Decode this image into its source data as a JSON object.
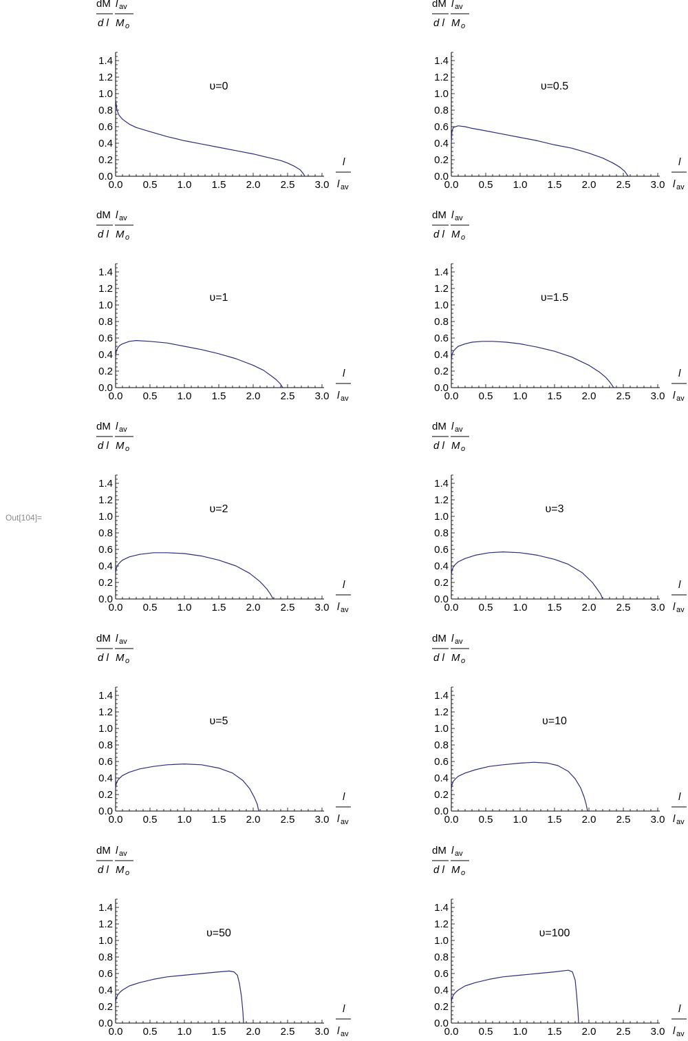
{
  "cell": {
    "out_label": "Out[104]="
  },
  "axis_labels": {
    "y_num_1": "dM",
    "y_den_1": "d l",
    "y_num_2": "l",
    "y_num_2_sub": "av",
    "y_den_2": "M",
    "y_den_2_sub": "o",
    "x_num": "l",
    "x_den": "l",
    "x_den_sub": "av"
  },
  "colors": {
    "curve": "#2b2b80",
    "axis": "#000000",
    "out_label": "#8a8a8a"
  },
  "chart_data": [
    {
      "type": "line",
      "title": "υ=0",
      "xlim": [
        0,
        3
      ],
      "ylim": [
        0,
        1.5
      ],
      "xticks": [
        "0.0",
        "0.5",
        "1.0",
        "1.5",
        "2.0",
        "2.5",
        "3.0"
      ],
      "yticks": [
        "0.0",
        "0.2",
        "0.4",
        "0.6",
        "0.8",
        "1.0",
        "1.2",
        "1.4"
      ],
      "series": [
        {
          "x": [
            0,
            0.02,
            0.05,
            0.1,
            0.2,
            0.3,
            0.5,
            0.75,
            1.0,
            1.25,
            1.5,
            1.75,
            2.0,
            2.25,
            2.4,
            2.5,
            2.6,
            2.68,
            2.73,
            2.75
          ],
          "y": [
            0.93,
            0.8,
            0.74,
            0.69,
            0.63,
            0.59,
            0.54,
            0.48,
            0.43,
            0.39,
            0.35,
            0.31,
            0.27,
            0.22,
            0.19,
            0.16,
            0.12,
            0.08,
            0.03,
            0
          ]
        }
      ]
    },
    {
      "type": "line",
      "title": "υ=0.5",
      "xlim": [
        0,
        3
      ],
      "ylim": [
        0,
        1.5
      ],
      "xticks": [
        "0.0",
        "0.5",
        "1.0",
        "1.5",
        "2.0",
        "2.5",
        "3.0"
      ],
      "yticks": [
        "0.0",
        "0.2",
        "0.4",
        "0.6",
        "0.8",
        "1.0",
        "1.2",
        "1.4"
      ],
      "series": [
        {
          "x": [
            0,
            0.01,
            0.03,
            0.06,
            0.1,
            0.2,
            0.3,
            0.5,
            0.75,
            1.0,
            1.25,
            1.5,
            1.75,
            2.0,
            2.2,
            2.35,
            2.45,
            2.52,
            2.57
          ],
          "y": [
            0.4,
            0.55,
            0.59,
            0.6,
            0.61,
            0.6,
            0.58,
            0.55,
            0.51,
            0.47,
            0.43,
            0.38,
            0.34,
            0.28,
            0.22,
            0.16,
            0.11,
            0.06,
            0
          ]
        }
      ]
    },
    {
      "type": "line",
      "title": "υ=1",
      "xlim": [
        0,
        3
      ],
      "ylim": [
        0,
        1.5
      ],
      "xticks": [
        "0.0",
        "0.5",
        "1.0",
        "1.5",
        "2.0",
        "2.5",
        "3.0"
      ],
      "yticks": [
        "0.0",
        "0.2",
        "0.4",
        "0.6",
        "0.8",
        "1.0",
        "1.2",
        "1.4"
      ],
      "series": [
        {
          "x": [
            0,
            0.01,
            0.03,
            0.06,
            0.1,
            0.2,
            0.3,
            0.5,
            0.75,
            1.0,
            1.25,
            1.5,
            1.75,
            2.0,
            2.15,
            2.25,
            2.33,
            2.39,
            2.43
          ],
          "y": [
            0.36,
            0.44,
            0.48,
            0.51,
            0.53,
            0.56,
            0.57,
            0.56,
            0.54,
            0.5,
            0.46,
            0.41,
            0.35,
            0.27,
            0.21,
            0.15,
            0.1,
            0.05,
            0
          ]
        }
      ]
    },
    {
      "type": "line",
      "title": "υ=1.5",
      "xlim": [
        0,
        3
      ],
      "ylim": [
        0,
        1.5
      ],
      "xticks": [
        "0.0",
        "0.5",
        "1.0",
        "1.5",
        "2.0",
        "2.5",
        "3.0"
      ],
      "yticks": [
        "0.0",
        "0.2",
        "0.4",
        "0.6",
        "0.8",
        "1.0",
        "1.2",
        "1.4"
      ],
      "series": [
        {
          "x": [
            0,
            0.01,
            0.03,
            0.06,
            0.1,
            0.2,
            0.3,
            0.45,
            0.6,
            0.8,
            1.0,
            1.25,
            1.5,
            1.75,
            2.0,
            2.15,
            2.25,
            2.31,
            2.36
          ],
          "y": [
            0.33,
            0.4,
            0.44,
            0.47,
            0.5,
            0.53,
            0.55,
            0.56,
            0.56,
            0.55,
            0.53,
            0.49,
            0.44,
            0.37,
            0.27,
            0.19,
            0.12,
            0.06,
            0
          ]
        }
      ]
    },
    {
      "type": "line",
      "title": "υ=2",
      "xlim": [
        0,
        3
      ],
      "ylim": [
        0,
        1.5
      ],
      "xticks": [
        "0.0",
        "0.5",
        "1.0",
        "1.5",
        "2.0",
        "2.5",
        "3.0"
      ],
      "yticks": [
        "0.0",
        "0.2",
        "0.4",
        "0.6",
        "0.8",
        "1.0",
        "1.2",
        "1.4"
      ],
      "series": [
        {
          "x": [
            0,
            0.01,
            0.03,
            0.06,
            0.1,
            0.2,
            0.35,
            0.55,
            0.75,
            1.0,
            1.25,
            1.5,
            1.75,
            1.95,
            2.1,
            2.2,
            2.25,
            2.29
          ],
          "y": [
            0.31,
            0.37,
            0.41,
            0.44,
            0.47,
            0.51,
            0.54,
            0.56,
            0.56,
            0.55,
            0.52,
            0.47,
            0.4,
            0.31,
            0.21,
            0.12,
            0.06,
            0
          ]
        }
      ]
    },
    {
      "type": "line",
      "title": "υ=3",
      "xlim": [
        0,
        3
      ],
      "ylim": [
        0,
        1.5
      ],
      "xticks": [
        "0.0",
        "0.5",
        "1.0",
        "1.5",
        "2.0",
        "2.5",
        "3.0"
      ],
      "yticks": [
        "0.0",
        "0.2",
        "0.4",
        "0.6",
        "0.8",
        "1.0",
        "1.2",
        "1.4"
      ],
      "series": [
        {
          "x": [
            0,
            0.01,
            0.03,
            0.06,
            0.1,
            0.2,
            0.35,
            0.55,
            0.75,
            1.0,
            1.25,
            1.5,
            1.7,
            1.9,
            2.05,
            2.12,
            2.17,
            2.2
          ],
          "y": [
            0.29,
            0.35,
            0.39,
            0.42,
            0.45,
            0.49,
            0.53,
            0.56,
            0.57,
            0.56,
            0.53,
            0.48,
            0.42,
            0.32,
            0.2,
            0.12,
            0.06,
            0
          ]
        }
      ]
    },
    {
      "type": "line",
      "title": "υ=5",
      "xlim": [
        0,
        3
      ],
      "ylim": [
        0,
        1.5
      ],
      "xticks": [
        "0.0",
        "0.5",
        "1.0",
        "1.5",
        "2.0",
        "2.5",
        "3.0"
      ],
      "yticks": [
        "0.0",
        "0.2",
        "0.4",
        "0.6",
        "0.8",
        "1.0",
        "1.2",
        "1.4"
      ],
      "series": [
        {
          "x": [
            0,
            0.01,
            0.03,
            0.06,
            0.1,
            0.2,
            0.35,
            0.55,
            0.75,
            1.0,
            1.25,
            1.5,
            1.7,
            1.85,
            1.95,
            2.02,
            2.06,
            2.08
          ],
          "y": [
            0.27,
            0.33,
            0.37,
            0.4,
            0.43,
            0.47,
            0.51,
            0.54,
            0.56,
            0.57,
            0.56,
            0.52,
            0.46,
            0.37,
            0.27,
            0.16,
            0.08,
            0
          ]
        }
      ]
    },
    {
      "type": "line",
      "title": "υ=10",
      "xlim": [
        0,
        3
      ],
      "ylim": [
        0,
        1.5
      ],
      "xticks": [
        "0.0",
        "0.5",
        "1.0",
        "1.5",
        "2.0",
        "2.5",
        "3.0"
      ],
      "yticks": [
        "0.0",
        "0.2",
        "0.4",
        "0.6",
        "0.8",
        "1.0",
        "1.2",
        "1.4"
      ],
      "series": [
        {
          "x": [
            0,
            0.01,
            0.03,
            0.06,
            0.1,
            0.2,
            0.35,
            0.55,
            0.75,
            1.0,
            1.2,
            1.4,
            1.55,
            1.7,
            1.8,
            1.88,
            1.93,
            1.96,
            1.98
          ],
          "y": [
            0.26,
            0.32,
            0.36,
            0.39,
            0.42,
            0.46,
            0.5,
            0.54,
            0.56,
            0.58,
            0.59,
            0.58,
            0.55,
            0.48,
            0.39,
            0.28,
            0.17,
            0.08,
            0
          ]
        }
      ]
    },
    {
      "type": "line",
      "title": "υ=50",
      "xlim": [
        0,
        3
      ],
      "ylim": [
        0,
        1.5
      ],
      "xticks": [
        "0.0",
        "0.5",
        "1.0",
        "1.5",
        "2.0",
        "2.5",
        "3.0"
      ],
      "yticks": [
        "0.0",
        "0.2",
        "0.4",
        "0.6",
        "0.8",
        "1.0",
        "1.2",
        "1.4"
      ],
      "series": [
        {
          "x": [
            0,
            0.01,
            0.03,
            0.06,
            0.1,
            0.2,
            0.35,
            0.55,
            0.75,
            1.0,
            1.25,
            1.5,
            1.65,
            1.72,
            1.77,
            1.8,
            1.83,
            1.85,
            1.86
          ],
          "y": [
            0.25,
            0.3,
            0.34,
            0.37,
            0.4,
            0.45,
            0.49,
            0.53,
            0.56,
            0.58,
            0.6,
            0.62,
            0.63,
            0.62,
            0.58,
            0.48,
            0.32,
            0.14,
            0
          ]
        }
      ]
    },
    {
      "type": "line",
      "title": "υ=100",
      "xlim": [
        0,
        3
      ],
      "ylim": [
        0,
        1.5
      ],
      "xticks": [
        "0.0",
        "0.5",
        "1.0",
        "1.5",
        "2.0",
        "2.5",
        "3.0"
      ],
      "yticks": [
        "0.0",
        "0.2",
        "0.4",
        "0.6",
        "0.8",
        "1.0",
        "1.2",
        "1.4"
      ],
      "series": [
        {
          "x": [
            0,
            0.01,
            0.03,
            0.06,
            0.1,
            0.2,
            0.35,
            0.55,
            0.75,
            1.0,
            1.25,
            1.5,
            1.7,
            1.76,
            1.8,
            1.82,
            1.84,
            1.85
          ],
          "y": [
            0.25,
            0.3,
            0.34,
            0.37,
            0.4,
            0.45,
            0.49,
            0.53,
            0.56,
            0.58,
            0.6,
            0.62,
            0.64,
            0.62,
            0.52,
            0.35,
            0.15,
            0
          ]
        }
      ]
    }
  ]
}
